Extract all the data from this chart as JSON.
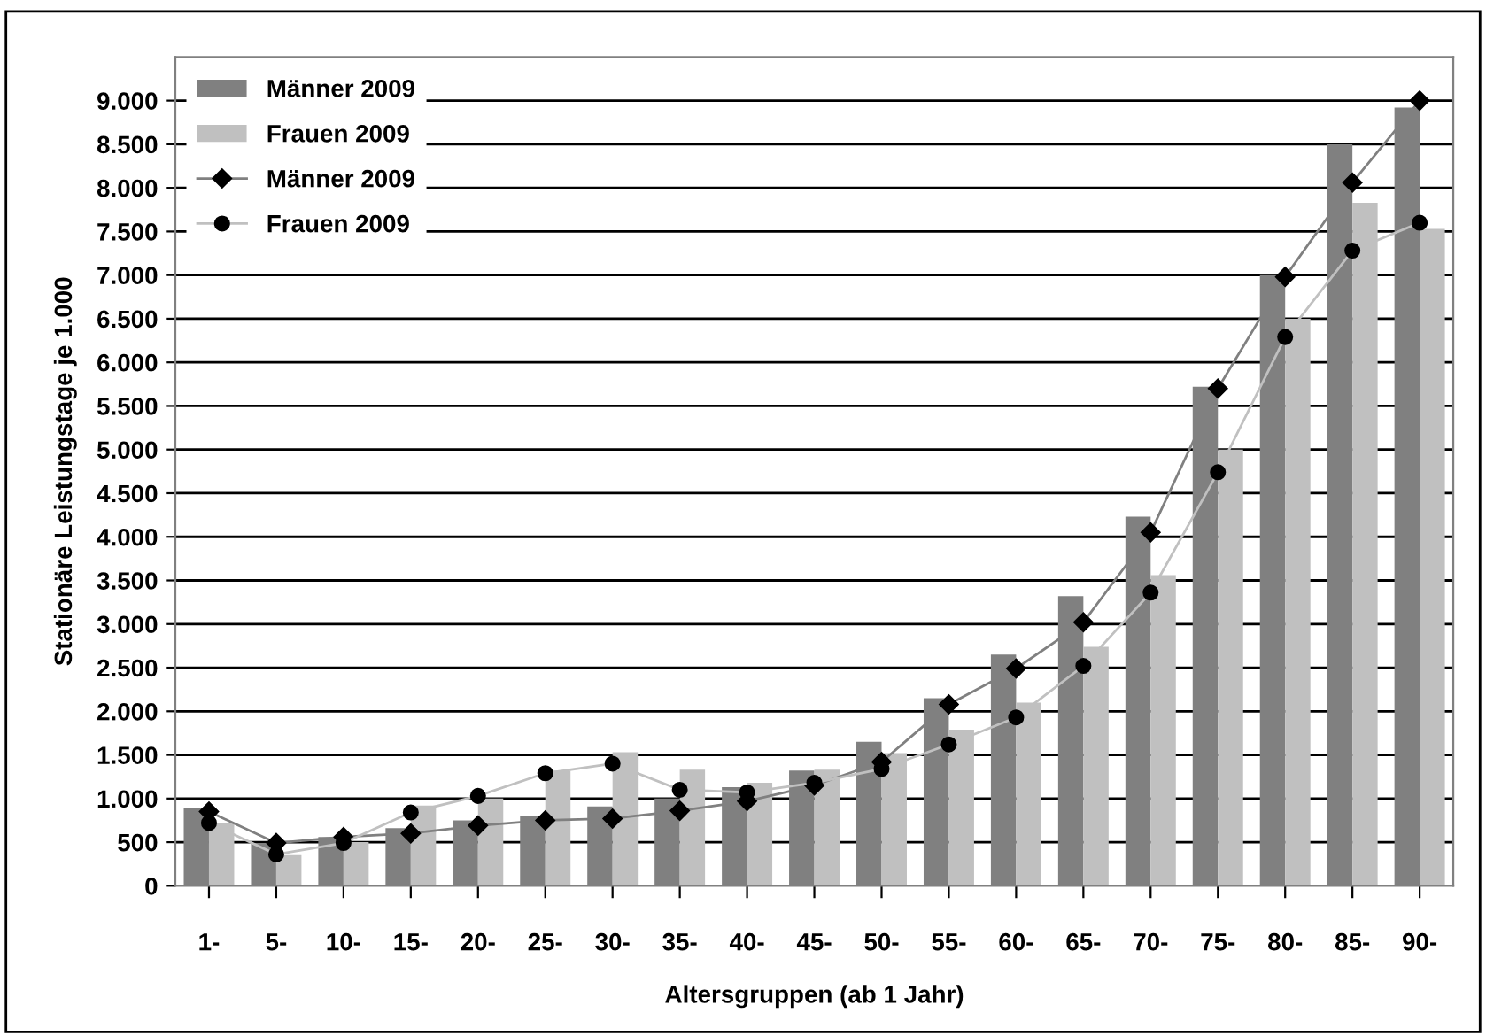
{
  "chart_data": {
    "type": "bar",
    "xlabel": "Altersgruppen (ab 1 Jahr)",
    "ylabel": "Stationäre Leistungstage je 1.000",
    "categories": [
      "1-",
      "5-",
      "10-",
      "15-",
      "20-",
      "25-",
      "30-",
      "35-",
      "40-",
      "45-",
      "50-",
      "55-",
      "60-",
      "65-",
      "70-",
      "75-",
      "80-",
      "85-",
      "90-"
    ],
    "series": [
      {
        "name": "Männer 2009",
        "color": "#808080",
        "values": [
          890,
          490,
          560,
          660,
          750,
          800,
          910,
          1000,
          1130,
          1320,
          1650,
          2150,
          2650,
          3320,
          4230,
          5720,
          7000,
          8500,
          8920
        ]
      },
      {
        "name": "Frauen 2009",
        "color": "#c0c0c0",
        "values": [
          720,
          350,
          500,
          920,
          1000,
          1320,
          1530,
          1330,
          1180,
          1330,
          1520,
          1790,
          2100,
          2740,
          3560,
          5000,
          6500,
          7830,
          7530
        ]
      },
      {
        "name": "Männer 2009",
        "type": "line",
        "color": "#808080",
        "marker": "diamond",
        "values": [
          850,
          490,
          560,
          600,
          690,
          750,
          770,
          860,
          970,
          1150,
          1420,
          2080,
          2490,
          3020,
          4050,
          5700,
          6980,
          8060,
          9000
        ]
      },
      {
        "name": "Frauen 2009",
        "type": "line",
        "color": "#c0c0c0",
        "marker": "circle",
        "values": [
          720,
          360,
          490,
          840,
          1030,
          1290,
          1400,
          1100,
          1070,
          1180,
          1340,
          1620,
          1930,
          2520,
          3360,
          4740,
          6290,
          7280,
          7600
        ]
      }
    ],
    "ylim": [
      0,
      9500
    ],
    "yticks": [
      {
        "value": 0,
        "label": "0"
      },
      {
        "value": 500,
        "label": "500"
      },
      {
        "value": 1000,
        "label": "1.000"
      },
      {
        "value": 1500,
        "label": "1.500"
      },
      {
        "value": 2000,
        "label": "2.000"
      },
      {
        "value": 2500,
        "label": "2.500"
      },
      {
        "value": 3000,
        "label": "3.000"
      },
      {
        "value": 3500,
        "label": "3.500"
      },
      {
        "value": 4000,
        "label": "4.000"
      },
      {
        "value": 4500,
        "label": "4.500"
      },
      {
        "value": 5000,
        "label": "5.000"
      },
      {
        "value": 5500,
        "label": "5.500"
      },
      {
        "value": 6000,
        "label": "6.000"
      },
      {
        "value": 6500,
        "label": "6.500"
      },
      {
        "value": 7000,
        "label": "7.000"
      },
      {
        "value": 7500,
        "label": "7.500"
      },
      {
        "value": 8000,
        "label": "8.000"
      },
      {
        "value": 8500,
        "label": "8.500"
      },
      {
        "value": 9000,
        "label": "9.000"
      }
    ],
    "grid": "y",
    "legend": "top left"
  }
}
